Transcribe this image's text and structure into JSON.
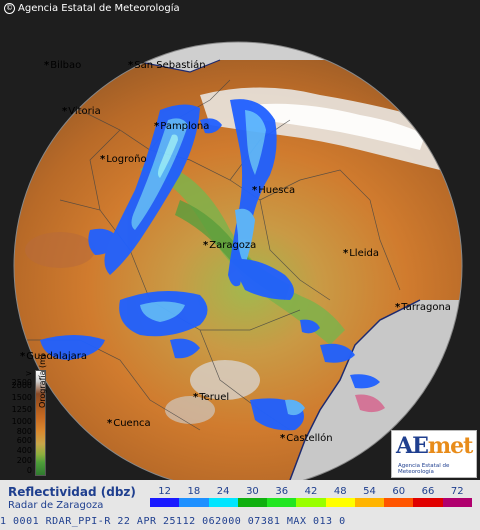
{
  "header": {
    "agency": "Agencia Estatal de Meteorología"
  },
  "cities": [
    {
      "name": "San Sebastián"
    },
    {
      "name": "Bilbao"
    },
    {
      "name": "Vitoria"
    },
    {
      "name": "Pamplona"
    },
    {
      "name": "Logroño"
    },
    {
      "name": "Huesca"
    },
    {
      "name": "Zaragoza"
    },
    {
      "name": "Lleida"
    },
    {
      "name": "Tarragona"
    },
    {
      "name": "Guadalajara"
    },
    {
      "name": "Teruel"
    },
    {
      "name": "Cuenca"
    },
    {
      "name": "Castellón"
    }
  ],
  "orography": {
    "title": "Orografía (m)",
    "ticks": [
      "> 2500",
      "2000",
      "1500",
      "1250",
      "1000",
      "800",
      "600",
      "400",
      "200",
      "0"
    ]
  },
  "logo": {
    "text_a": "AE",
    "text_b": "met",
    "subtitle": "Agencia Estatal de Meteorología"
  },
  "legend": {
    "title": "Reflectividad (dbz)",
    "subtitle": "Radar de Zaragoza",
    "values": [
      "12",
      "18",
      "24",
      "30",
      "36",
      "42",
      "48",
      "54",
      "60",
      "66",
      "72"
    ],
    "colors": [
      "#1a1aff",
      "#1e90ff",
      "#00e5ff",
      "#10b010",
      "#22e622",
      "#98ff00",
      "#ffff00",
      "#ffb400",
      "#ff5500",
      "#e00000",
      "#b0006e"
    ]
  },
  "info": {
    "line": "1 0001 RDAR_PPI-R   22 APR 25112 062000 07381 MAX 013 0"
  }
}
